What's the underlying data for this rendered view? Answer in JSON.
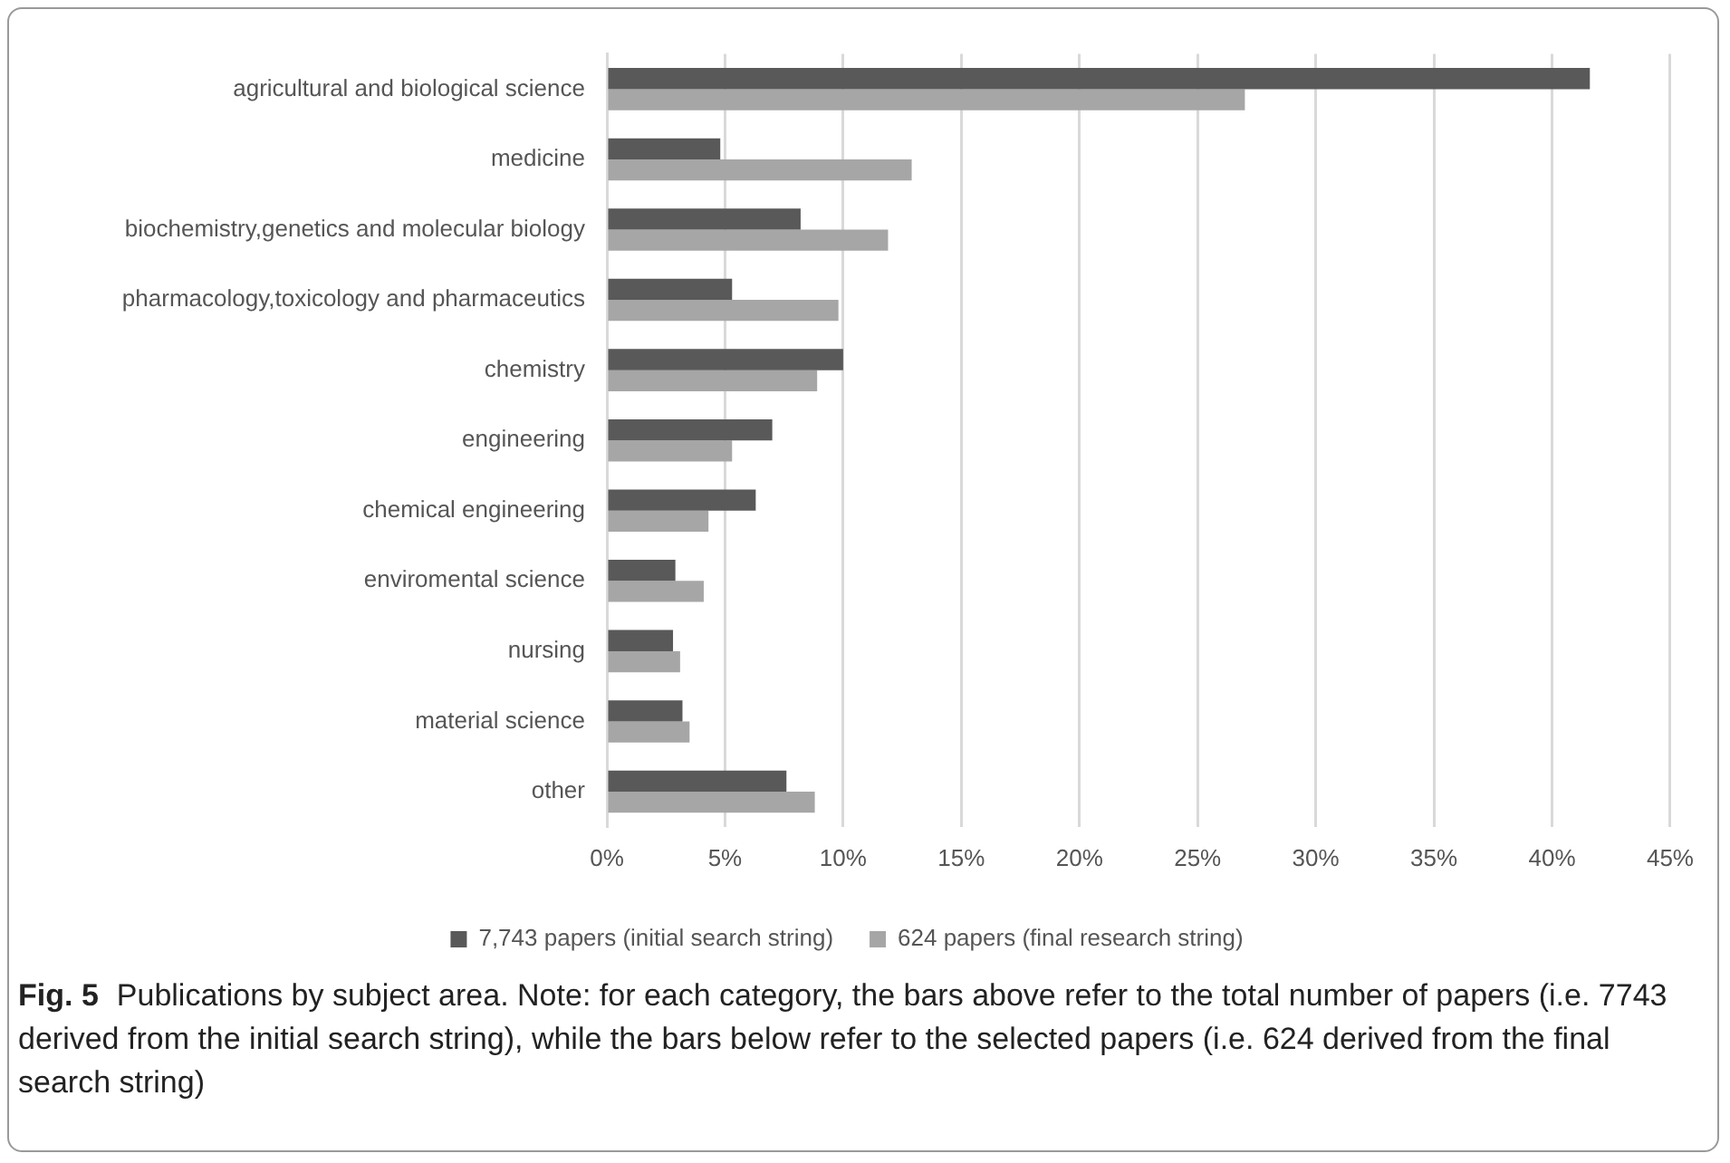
{
  "chart_data": {
    "type": "bar",
    "orientation": "horizontal",
    "categories": [
      "agricultural and biological science",
      "medicine",
      "biochemistry,genetics and molecular biology",
      "pharmacology,toxicology and pharmaceutics",
      "chemistry",
      "engineering",
      "chemical engineering",
      "enviromental science",
      "nursing",
      "material science",
      "other"
    ],
    "series": [
      {
        "name": "7,743 papers (initial search string)",
        "color": "#595959",
        "values": [
          41.6,
          4.8,
          8.2,
          5.3,
          10.0,
          7.0,
          6.3,
          2.9,
          2.8,
          3.2,
          7.6
        ]
      },
      {
        "name": "624 papers (final research string)",
        "color": "#a6a6a6",
        "values": [
          27.0,
          12.9,
          11.9,
          9.8,
          8.9,
          5.3,
          4.3,
          4.1,
          3.1,
          3.5,
          8.8
        ]
      }
    ],
    "xlim": [
      0,
      45
    ],
    "xticks": [
      {
        "value": 0,
        "label": "0%"
      },
      {
        "value": 5,
        "label": "5%"
      },
      {
        "value": 10,
        "label": "10%"
      },
      {
        "value": 15,
        "label": "15%"
      },
      {
        "value": 20,
        "label": "20%"
      },
      {
        "value": 25,
        "label": "25%"
      },
      {
        "value": 30,
        "label": "30%"
      },
      {
        "value": 35,
        "label": "35%"
      },
      {
        "value": 40,
        "label": "40%"
      },
      {
        "value": 45,
        "label": "45%"
      }
    ],
    "grid": "x",
    "legend": "bottom",
    "annotations": [
      "Fig. 5",
      "Publications by subject area. Note: for each category, the bars above refer to the total number of papers (i.e. 7743 derived from the initial search string), while the bars below refer to the selected papers (i.e. 624 derived from the final search string)"
    ]
  }
}
